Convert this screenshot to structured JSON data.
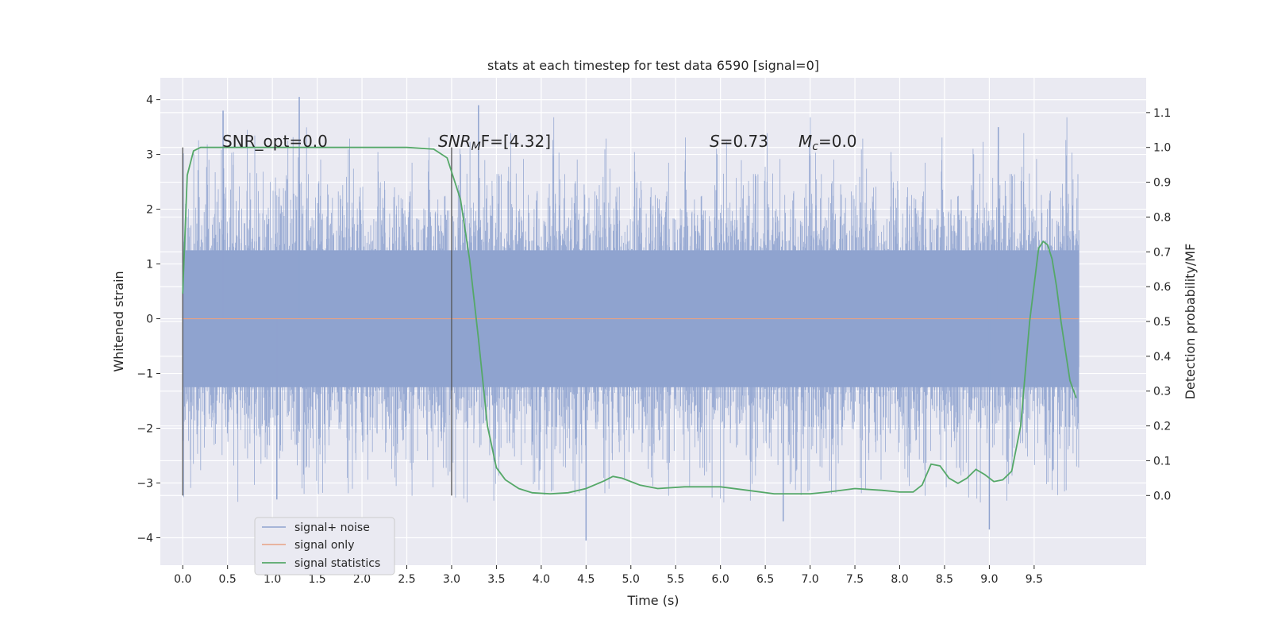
{
  "chart_data": {
    "type": "line",
    "title": "stats at each timestep for test data 6590 [signal=0]",
    "xlabel": "Time (s)",
    "ylabel_left": "Whitened strain",
    "ylabel_right": "Detection probability/MF",
    "xlim": [
      -0.25,
      10.75
    ],
    "ylim_left": [
      -4.5,
      4.4
    ],
    "ylim_right": [
      -0.2,
      1.2
    ],
    "x_ticks": [
      "0.0",
      "0.5",
      "1.0",
      "1.5",
      "2.0",
      "2.5",
      "3.0",
      "3.5",
      "4.0",
      "4.5",
      "5.0",
      "5.5",
      "6.0",
      "6.5",
      "7.0",
      "7.5",
      "8.0",
      "8.5",
      "9.0",
      "9.5"
    ],
    "x_tick_values": [
      0,
      0.5,
      1,
      1.5,
      2,
      2.5,
      3,
      3.5,
      4,
      4.5,
      5,
      5.5,
      6,
      6.5,
      7,
      7.5,
      8,
      8.5,
      9,
      9.5
    ],
    "y_ticks_left": [
      "4",
      "3",
      "2",
      "1",
      "0",
      "−1",
      "−2",
      "−3",
      "−4"
    ],
    "y_tick_values_left": [
      4,
      3,
      2,
      1,
      0,
      -1,
      -2,
      -3,
      -4
    ],
    "y_ticks_right": [
      "1.1",
      "1.0",
      "0.9",
      "0.8",
      "0.7",
      "0.6",
      "0.5",
      "0.4",
      "0.3",
      "0.2",
      "0.1",
      "0.0"
    ],
    "y_tick_values_right": [
      1.1,
      1.0,
      0.9,
      0.8,
      0.7,
      0.6,
      0.5,
      0.4,
      0.3,
      0.2,
      0.1,
      0.0
    ],
    "grid": true,
    "legend_position": "lower-left",
    "annotations": {
      "snr_opt": "SNR_opt=0.0",
      "snr_mf_italic": "SNR",
      "snr_mf_sub": "M",
      "snr_mf_rest": "F=[4.32]",
      "s_label_italic": "S",
      "s_label_rest": "=0.73",
      "mc_italic": "M",
      "mc_sub": "c",
      "mc_rest": "=0.0"
    },
    "vertical_markers_x": [
      0.0,
      3.0
    ],
    "series": [
      {
        "name": "signal+ noise",
        "color": "#8fa3cf",
        "axis": "left",
        "x_range": [
          0,
          10.0
        ],
        "envelope_typical": [
          -1.9,
          2.1
        ],
        "peaks": [
          [
            0.45,
            3.8
          ],
          [
            1.3,
            4.05
          ],
          [
            3.3,
            3.9
          ],
          [
            9.1,
            3.5
          ],
          [
            4.5,
            -4.05
          ],
          [
            9.0,
            -3.85
          ],
          [
            1.05,
            -3.3
          ],
          [
            6.7,
            -3.7
          ]
        ]
      },
      {
        "name": "signal only",
        "color": "#e8a283",
        "axis": "left",
        "x": [
          0,
          10.0
        ],
        "y": [
          0,
          0
        ]
      },
      {
        "name": "signal statistics",
        "color": "#55a868",
        "axis": "right",
        "x": [
          0.0,
          0.05,
          0.12,
          0.2,
          0.3,
          0.5,
          1.0,
          1.5,
          2.0,
          2.5,
          2.8,
          2.95,
          3.1,
          3.2,
          3.3,
          3.4,
          3.5,
          3.6,
          3.75,
          3.9,
          4.1,
          4.3,
          4.5,
          4.7,
          4.8,
          4.9,
          5.1,
          5.3,
          5.6,
          6.0,
          6.3,
          6.6,
          7.0,
          7.2,
          7.5,
          7.8,
          8.0,
          8.15,
          8.25,
          8.35,
          8.45,
          8.55,
          8.65,
          8.75,
          8.85,
          8.95,
          9.05,
          9.15,
          9.25,
          9.35,
          9.45,
          9.55,
          9.6,
          9.65,
          9.7,
          9.75,
          9.8,
          9.9,
          9.97
        ],
        "y": [
          0.58,
          0.92,
          0.99,
          1.0,
          1.0,
          1.0,
          1.0,
          1.0,
          1.0,
          1.0,
          0.995,
          0.97,
          0.85,
          0.68,
          0.45,
          0.2,
          0.08,
          0.045,
          0.02,
          0.008,
          0.005,
          0.008,
          0.02,
          0.042,
          0.055,
          0.05,
          0.03,
          0.02,
          0.025,
          0.025,
          0.015,
          0.005,
          0.005,
          0.01,
          0.02,
          0.015,
          0.01,
          0.01,
          0.03,
          0.09,
          0.085,
          0.05,
          0.035,
          0.05,
          0.075,
          0.06,
          0.04,
          0.045,
          0.07,
          0.2,
          0.5,
          0.71,
          0.73,
          0.72,
          0.68,
          0.6,
          0.5,
          0.33,
          0.28
        ]
      }
    ]
  }
}
